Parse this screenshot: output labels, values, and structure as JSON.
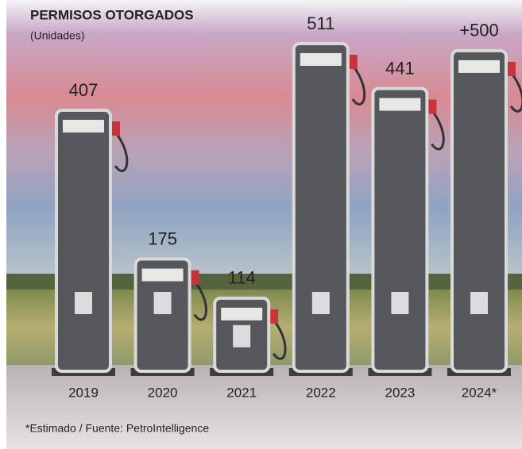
{
  "chart_data": {
    "type": "bar",
    "title": "PERMISOS OTORGADOS",
    "subtitle": "(Unidades)",
    "categories": [
      "2019",
      "2020",
      "2021",
      "2022",
      "2023",
      "2024*"
    ],
    "values": [
      407,
      175,
      114,
      511,
      441,
      500
    ],
    "value_labels": [
      "407",
      "175",
      "114",
      "511",
      "441",
      "+500"
    ],
    "color": "#55575a",
    "note": "*Estimado / Fuente: PetroIntelligence"
  }
}
